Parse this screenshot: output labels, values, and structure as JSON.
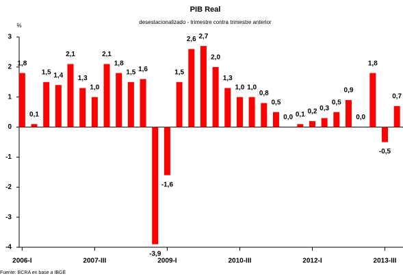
{
  "chart_data": {
    "type": "bar",
    "title": "PIB Real",
    "subtitle": "desestacionalizado - trimestre contra trimestre anterior",
    "y_unit": "%",
    "source": "Fuente: BCRA en base a IBGE",
    "categories": [
      "2006-I",
      null,
      null,
      null,
      null,
      null,
      "2007-III",
      null,
      null,
      null,
      null,
      null,
      "2009-I",
      null,
      null,
      null,
      null,
      null,
      "2010-III",
      null,
      null,
      null,
      null,
      null,
      "2012-I",
      null,
      null,
      null,
      null,
      null,
      "2013-III",
      null
    ],
    "values": [
      1.8,
      0.1,
      1.5,
      1.4,
      2.1,
      1.3,
      1.0,
      2.1,
      1.8,
      1.5,
      1.6,
      -3.9,
      -1.6,
      1.5,
      2.6,
      2.7,
      2.0,
      1.3,
      1.0,
      1.0,
      0.8,
      0.5,
      0.0,
      0.1,
      0.2,
      0.3,
      0.5,
      0.9,
      0.0,
      1.8,
      -0.5,
      0.7
    ],
    "value_labels": [
      "1,8",
      "0,1",
      "1,5",
      "1,4",
      "2,1",
      "1,3",
      "1,0",
      "2,1",
      "1,8",
      "1,5",
      "1,6",
      "-3,9",
      "-1,6",
      "1,5",
      "2,6",
      "2,7",
      "2,0",
      "1,3",
      "1,0",
      "1,0",
      "0,8",
      "0,5",
      "0,0",
      "0,1",
      "0,2",
      "0,3",
      "0,5",
      "0,9",
      "0,0",
      "1,8",
      "-0,5",
      "0,7"
    ],
    "color": "#ff0000",
    "ylim": [
      -4,
      3
    ],
    "yticks": [
      -4,
      -3,
      -2,
      -1,
      0,
      1,
      2,
      3
    ],
    "grid": false
  }
}
